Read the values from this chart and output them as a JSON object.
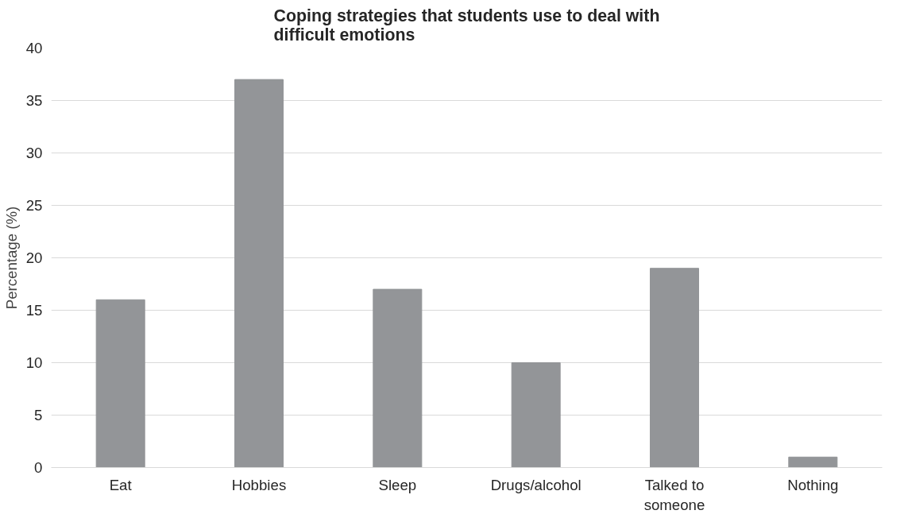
{
  "chart_data": {
    "type": "bar",
    "title": "Coping strategies that students use to deal with difficult emotions",
    "ylabel": "Percentage (%)",
    "categories": [
      "Eat",
      "Hobbies",
      "Sleep",
      "Drugs/alcohol",
      "Talked to someone",
      "Nothing"
    ],
    "values": [
      16,
      37,
      17,
      10,
      19,
      1
    ],
    "color": "#939598",
    "ylim": [
      0,
      40
    ],
    "yticks": [
      0,
      5,
      10,
      15,
      20,
      25,
      30,
      35,
      40
    ],
    "grid": "y"
  }
}
